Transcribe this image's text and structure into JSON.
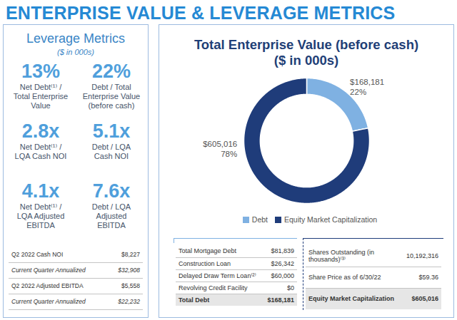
{
  "header": {
    "title": "ENTERPRISE VALUE & LEVERAGE METRICS"
  },
  "leverage_panel": {
    "title": "Leverage Metrics",
    "subtitle": "($ in 000s)",
    "metrics": [
      {
        "value": "13%",
        "label": [
          "Net Debt⁽¹⁾ /",
          "Total Enterprise",
          "Value"
        ]
      },
      {
        "value": "22%",
        "label": [
          "Debt / Total",
          "Enterprise Value",
          "(before cash)"
        ]
      },
      {
        "value": "2.8x",
        "label": [
          "Net Debt⁽¹⁾ /",
          "LQA Cash NOI"
        ]
      },
      {
        "value": "5.1x",
        "label": [
          "Debt / LQA",
          "Cash NOI"
        ]
      },
      {
        "value": "4.1x",
        "label": [
          "Net Debt⁽¹⁾ /",
          "LQA Adjusted",
          "EBITDA"
        ]
      },
      {
        "value": "7.6x",
        "label": [
          "Debt / LQA",
          "Adjusted",
          "EBITDA"
        ]
      }
    ],
    "table": {
      "rows": [
        [
          "Q2 2022 Cash NOI",
          "$8,227"
        ],
        [
          "Current Quarter Annualized",
          "$32,908"
        ],
        [
          "Q2 2022 Adjusted EBITDA",
          "$5,558"
        ],
        [
          "Current Quarter Annualized",
          "$22,232"
        ]
      ]
    }
  },
  "chart_data": {
    "type": "pie",
    "title": "Total Enterprise Value (before cash)",
    "subtitle": "($ in 000s)",
    "categories": [
      "Debt",
      "Equity Market Capitalization"
    ],
    "values": [
      168181,
      605016
    ],
    "value_labels": [
      "$168,181",
      "$605,016"
    ],
    "percents": [
      22,
      78
    ],
    "percent_labels": [
      "22%",
      "78%"
    ],
    "colors": [
      "#7fb1e2",
      "#1f3c7a"
    ],
    "legend": "bottom",
    "data_labels": true
  },
  "debt_table": {
    "rows": [
      [
        "Total Mortgage Debt",
        "$81,839"
      ],
      [
        "Construction Loan",
        "$26,342"
      ],
      [
        "Delayed Draw Term Loan⁽²⁾",
        "$60,000"
      ],
      [
        "Revolving Credit Facility",
        "$0"
      ]
    ],
    "total": [
      "Total Debt",
      "$168,181"
    ]
  },
  "equity_table": {
    "rows": [
      [
        "Shares Outstanding (in thousands)⁽³⁾",
        "10,192,316"
      ],
      [
        "Share Price as of 6/30/22",
        "$59.36"
      ]
    ],
    "total": [
      "Equity Market Capitalization",
      "$605,016"
    ]
  }
}
